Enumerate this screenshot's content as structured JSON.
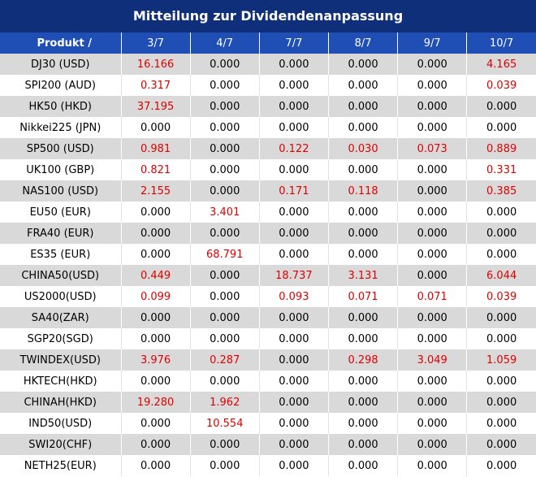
{
  "title": "Mitteilung zur Dividendenanpassung",
  "header": {
    "product_label": "Produkt /",
    "dates": [
      "3/7",
      "4/7",
      "7/7",
      "8/7",
      "9/7",
      "10/7"
    ]
  },
  "rows": [
    {
      "product": "DJ30 (USD)",
      "values": [
        "16.166",
        "0.000",
        "0.000",
        "0.000",
        "0.000",
        "4.165"
      ]
    },
    {
      "product": "SPI200 (AUD)",
      "values": [
        "0.317",
        "0.000",
        "0.000",
        "0.000",
        "0.000",
        "0.039"
      ]
    },
    {
      "product": "HK50 (HKD)",
      "values": [
        "37.195",
        "0.000",
        "0.000",
        "0.000",
        "0.000",
        "0.000"
      ]
    },
    {
      "product": "Nikkei225 (JPN)",
      "values": [
        "0.000",
        "0.000",
        "0.000",
        "0.000",
        "0.000",
        "0.000"
      ]
    },
    {
      "product": "SP500 (USD)",
      "values": [
        "0.981",
        "0.000",
        "0.122",
        "0.030",
        "0.073",
        "0.889"
      ]
    },
    {
      "product": "UK100 (GBP)",
      "values": [
        "0.821",
        "0.000",
        "0.000",
        "0.000",
        "0.000",
        "0.331"
      ]
    },
    {
      "product": "NAS100 (USD)",
      "values": [
        "2.155",
        "0.000",
        "0.171",
        "0.118",
        "0.000",
        "0.385"
      ]
    },
    {
      "product": "EU50 (EUR)",
      "values": [
        "0.000",
        "3.401",
        "0.000",
        "0.000",
        "0.000",
        "0.000"
      ]
    },
    {
      "product": "FRA40 (EUR)",
      "values": [
        "0.000",
        "0.000",
        "0.000",
        "0.000",
        "0.000",
        "0.000"
      ]
    },
    {
      "product": "ES35 (EUR)",
      "values": [
        "0.000",
        "68.791",
        "0.000",
        "0.000",
        "0.000",
        "0.000"
      ]
    },
    {
      "product": "CHINA50(USD)",
      "values": [
        "0.449",
        "0.000",
        "18.737",
        "3.131",
        "0.000",
        "6.044"
      ]
    },
    {
      "product": "US2000(USD)",
      "values": [
        "0.099",
        "0.000",
        "0.093",
        "0.071",
        "0.071",
        "0.039"
      ]
    },
    {
      "product": "SA40(ZAR)",
      "values": [
        "0.000",
        "0.000",
        "0.000",
        "0.000",
        "0.000",
        "0.000"
      ]
    },
    {
      "product": "SGP20(SGD)",
      "values": [
        "0.000",
        "0.000",
        "0.000",
        "0.000",
        "0.000",
        "0.000"
      ]
    },
    {
      "product": "TWINDEX(USD)",
      "values": [
        "3.976",
        "0.287",
        "0.000",
        "0.298",
        "3.049",
        "1.059"
      ]
    },
    {
      "product": "HKTECH(HKD)",
      "values": [
        "0.000",
        "0.000",
        "0.000",
        "0.000",
        "0.000",
        "0.000"
      ]
    },
    {
      "product": "CHINAH(HKD)",
      "values": [
        "19.280",
        "1.962",
        "0.000",
        "0.000",
        "0.000",
        "0.000"
      ]
    },
    {
      "product": "IND50(USD)",
      "values": [
        "0.000",
        "10.554",
        "0.000",
        "0.000",
        "0.000",
        "0.000"
      ]
    },
    {
      "product": "SWI20(CHF)",
      "values": [
        "0.000",
        "0.000",
        "0.000",
        "0.000",
        "0.000",
        "0.000"
      ]
    },
    {
      "product": "NETH25(EUR)",
      "values": [
        "0.000",
        "0.000",
        "0.000",
        "0.000",
        "0.000",
        "0.000"
      ]
    }
  ],
  "colors": {
    "title_bg": "#0f2f7a",
    "header_bg": "#1f4fb4",
    "row_alt_bg": "#d9d9d9",
    "nonzero_value": "#e00000"
  }
}
